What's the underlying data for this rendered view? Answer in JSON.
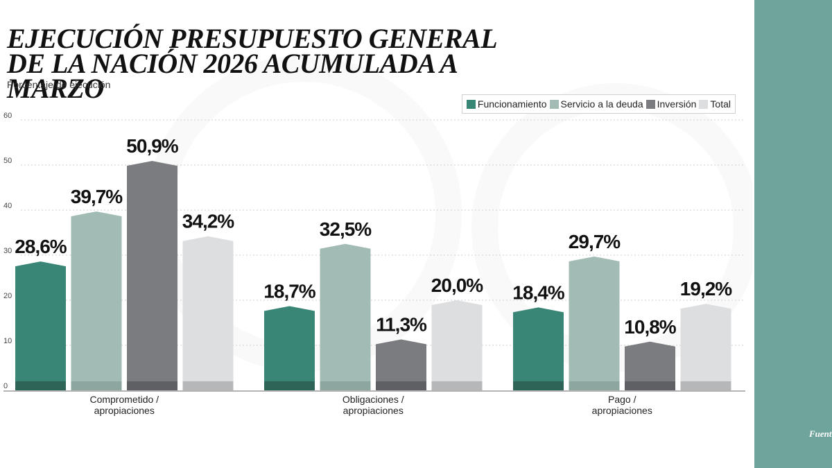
{
  "title": "EJECUCIÓN PRESUPUESTO GENERAL DE LA NACIÓN 2026 ACUMULADA A MARZO",
  "subtitle": "Porcentaje de ejecución",
  "source_fragment": "Fuent",
  "chart_data": {
    "type": "bar",
    "title": "EJECUCIÓN PRESUPUESTO GENERAL DE LA NACIÓN 2026 ACUMULADA A MARZO",
    "subtitle": "Porcentaje de ejecución",
    "categories": [
      [
        "Comprometido /",
        "apropiaciones"
      ],
      [
        "Obligaciones /",
        "apropiaciones"
      ],
      [
        "Pago /",
        "apropiaciones"
      ]
    ],
    "series": [
      {
        "name": "Funcionamiento",
        "color": "#3a8676",
        "values": [
          28.6,
          18.7,
          18.4
        ],
        "labels": [
          "28,6%",
          "18,7%",
          "18,4%"
        ]
      },
      {
        "name": "Servicio a la deuda",
        "color": "#a2bcb5",
        "values": [
          39.7,
          32.5,
          29.7
        ],
        "labels": [
          "39,7%",
          "32,5%",
          "29,7%"
        ]
      },
      {
        "name": "Inversión",
        "color": "#7b7c80",
        "values": [
          50.9,
          11.3,
          10.8
        ],
        "labels": [
          "50,9%",
          "11,3%",
          "10,8%"
        ]
      },
      {
        "name": "Total",
        "color": "#dddee0",
        "values": [
          34.2,
          20.0,
          19.2
        ],
        "labels": [
          "34,2%",
          "20,0%",
          "19,2%"
        ]
      }
    ],
    "yticks": [
      "0",
      "10",
      "20",
      "30",
      "40",
      "50",
      "60"
    ],
    "ylim": [
      0,
      60
    ],
    "grid": true,
    "legend_position": "top-right"
  }
}
